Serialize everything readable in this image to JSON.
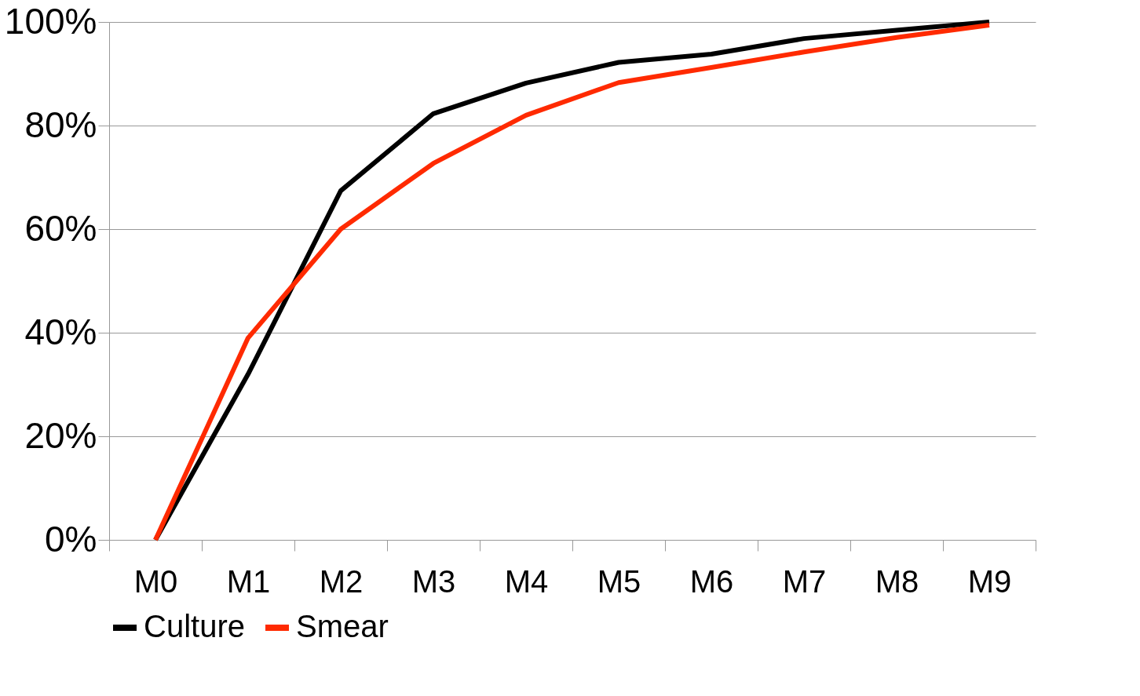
{
  "chart_data": {
    "type": "line",
    "categories": [
      "M0",
      "M1",
      "M2",
      "M3",
      "M4",
      "M5",
      "M6",
      "M7",
      "M8",
      "M9"
    ],
    "series": [
      {
        "name": "Culture",
        "color": "#000000",
        "values": [
          0,
          32,
          67.4,
          82.3,
          88.2,
          92.2,
          93.8,
          96.8,
          98.4,
          100
        ]
      },
      {
        "name": "Smear",
        "color": "#ff2a00",
        "values": [
          0,
          39,
          60,
          72.7,
          82,
          88.3,
          91.2,
          94.2,
          97,
          99.4
        ]
      }
    ],
    "ylim": [
      0,
      100
    ],
    "yticks": [
      {
        "value": 0,
        "label": "0%"
      },
      {
        "value": 20,
        "label": "20%"
      },
      {
        "value": 40,
        "label": "40%"
      },
      {
        "value": 60,
        "label": "60%"
      },
      {
        "value": 80,
        "label": "80%"
      },
      {
        "value": 100,
        "label": "100%"
      }
    ],
    "grid": "y",
    "legend": "bottom",
    "marker": "none",
    "line_style": "solid"
  }
}
